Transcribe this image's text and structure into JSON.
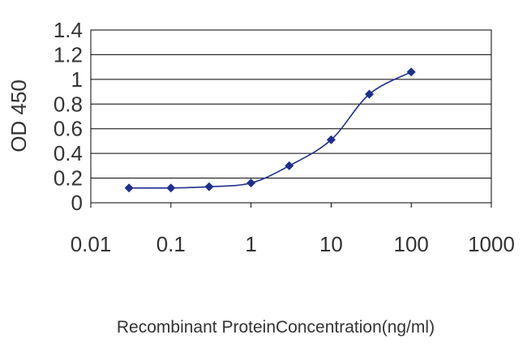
{
  "chart_data": {
    "type": "line",
    "title": "",
    "xlabel": "Recombinant ProteinConcentration(ng/ml)",
    "ylabel": "OD 450",
    "xscale": "log",
    "xlim": [
      0.01,
      1000
    ],
    "ylim": [
      0,
      1.4
    ],
    "grid": "horizontal",
    "legend": "none",
    "xticks": [
      "0.01",
      "0.1",
      "1",
      "10",
      "100",
      "1000"
    ],
    "yticks": [
      "0",
      "0.2",
      "0.4",
      "0.6",
      "0.8",
      "1",
      "1.2",
      "1.4"
    ],
    "series": [
      {
        "x": [
          0.03,
          0.1,
          0.3,
          1,
          3,
          10,
          30,
          100
        ],
        "y": [
          0.12,
          0.12,
          0.13,
          0.16,
          0.3,
          0.51,
          0.88,
          1.06
        ]
      }
    ],
    "colors": {
      "series": "#1f2f8f",
      "grid": "#000000",
      "text": "#333333"
    }
  }
}
